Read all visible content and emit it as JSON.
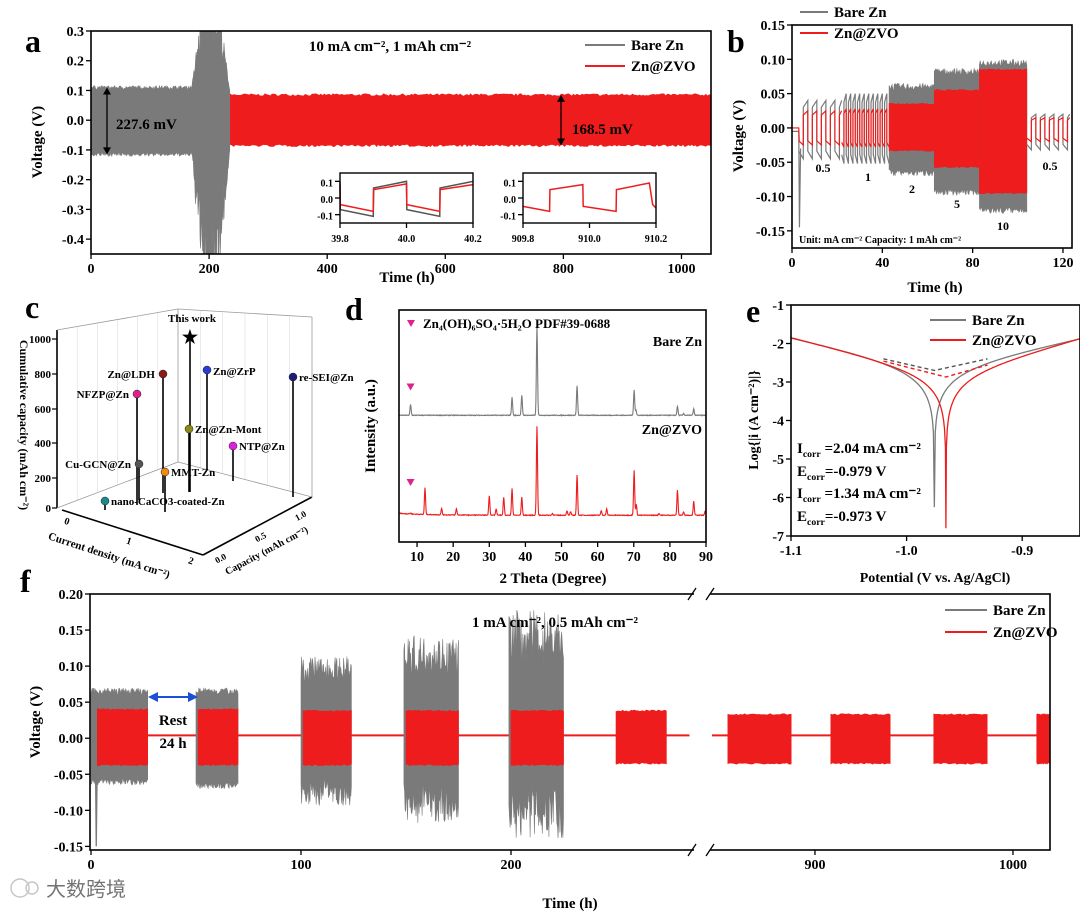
{
  "watermark": "大数跨境",
  "colors": {
    "bare": "#7a7a7a",
    "zvo": "#ee1c1c",
    "pink": "#e0218a"
  },
  "chart_data": [
    {
      "panel": "a",
      "type": "line",
      "title": "10 mA cm⁻², 1 mAh cm⁻²",
      "xlabel": "Time (h)",
      "ylabel": "Voltage (V)",
      "xlim": [
        0,
        1050
      ],
      "ylim": [
        -0.45,
        0.3
      ],
      "xticks": [
        "0",
        "200",
        "400",
        "600",
        "800",
        "1000"
      ],
      "yticks": [
        "0.3",
        "0.2",
        "0.1",
        "0.0",
        "-0.1",
        "-0.2",
        "-0.3",
        "-0.4"
      ],
      "legend": [
        "Bare Zn",
        "Zn@ZVO"
      ],
      "legend_position": "top-right",
      "series": [
        {
          "name": "Bare Zn",
          "segments": [
            {
              "t": [
                0,
                170
              ],
              "upper": 0.11,
              "lower": -0.115
            },
            {
              "t": [
                170,
                235
              ],
              "upper": 0.3,
              "lower": -0.45,
              "note": "short circuit"
            }
          ]
        },
        {
          "name": "Zn@ZVO",
          "segments": [
            {
              "t": [
                0,
                1050
              ],
              "upper": 0.085,
              "lower": -0.085
            }
          ]
        }
      ],
      "annotations": [
        "227.6 mV",
        "168.5 mV"
      ],
      "insets": [
        {
          "xlim": [
            39.8,
            40.2
          ],
          "ylim": [
            -0.15,
            0.15
          ],
          "xticks": [
            "39.8",
            "40.0",
            "40.2"
          ],
          "yticks": [
            "0.1",
            "0.0",
            "-0.1"
          ],
          "series": [
            {
              "name": "Bare Zn",
              "points": [
                [
                  39.8,
                  0.1
                ],
                [
                  39.801,
                  -0.07
                ],
                [
                  39.9,
                  -0.11
                ],
                [
                  39.901,
                  0.06
                ],
                [
                  40.0,
                  0.1
                ],
                [
                  40.001,
                  -0.07
                ],
                [
                  40.1,
                  -0.11
                ],
                [
                  40.101,
                  0.06
                ],
                [
                  40.2,
                  0.1
                ]
              ]
            },
            {
              "name": "Zn@ZVO",
              "points": [
                [
                  39.8,
                  0.08
                ],
                [
                  39.801,
                  -0.04
                ],
                [
                  39.9,
                  -0.08
                ],
                [
                  39.901,
                  0.05
                ],
                [
                  40.0,
                  0.085
                ],
                [
                  40.001,
                  -0.04
                ],
                [
                  40.1,
                  -0.08
                ],
                [
                  40.101,
                  0.05
                ],
                [
                  40.2,
                  0.08
                ]
              ]
            }
          ]
        },
        {
          "xlim": [
            909.8,
            910.2
          ],
          "ylim": [
            -0.15,
            0.15
          ],
          "xticks": [
            "909.8",
            "910.0",
            "910.2"
          ],
          "yticks": [
            "0.1",
            "0.0",
            "-0.1"
          ],
          "series": [
            {
              "name": "Zn@ZVO",
              "points": [
                [
                  909.8,
                  -0.05
                ],
                [
                  909.88,
                  -0.08
                ],
                [
                  909.881,
                  0.05
                ],
                [
                  909.98,
                  0.08
                ],
                [
                  909.981,
                  -0.05
                ],
                [
                  910.08,
                  -0.08
                ],
                [
                  910.081,
                  0.05
                ],
                [
                  910.18,
                  0.09
                ],
                [
                  910.19,
                  -0.04
                ],
                [
                  910.2,
                  -0.06
                ]
              ]
            }
          ]
        }
      ]
    },
    {
      "panel": "b",
      "type": "line",
      "xlabel": "Time (h)",
      "ylabel": "Voltage (V)",
      "xlim": [
        0,
        124
      ],
      "ylim": [
        -0.175,
        0.15
      ],
      "xticks": [
        "0",
        "40",
        "80",
        "120"
      ],
      "yticks": [
        "0.15",
        "0.10",
        "0.05",
        "0.00",
        "-0.05",
        "-0.10",
        "-0.15"
      ],
      "legend": [
        "Bare Zn",
        "Zn@ZVO"
      ],
      "legend_position": "top-left",
      "note": "Unit: mA cm⁻² Capacity: 1 mAh cm⁻²",
      "segments": [
        {
          "current_density": "0.5",
          "t": [
            3,
            22
          ],
          "period": 4,
          "bare": [
            0.04,
            -0.045
          ],
          "zvo": [
            0.025,
            -0.025
          ]
        },
        {
          "current_density": "1",
          "t": [
            22,
            43
          ],
          "period": 2,
          "bare": [
            0.05,
            -0.052
          ],
          "zvo": [
            0.028,
            -0.028
          ]
        },
        {
          "current_density": "2",
          "t": [
            43,
            63
          ],
          "period": 1,
          "bare": [
            0.06,
            -0.065
          ],
          "zvo": [
            0.035,
            -0.033
          ]
        },
        {
          "current_density": "5",
          "t": [
            63,
            83
          ],
          "period": 0.4,
          "bare": [
            0.082,
            -0.093
          ],
          "zvo": [
            0.055,
            -0.057
          ]
        },
        {
          "current_density": "10",
          "t": [
            83,
            104
          ],
          "period": 0.2,
          "bare": [
            0.095,
            -0.12
          ],
          "zvo": [
            0.085,
            -0.095
          ]
        },
        {
          "current_density": "0.5",
          "t": [
            104,
            123
          ],
          "period": 4,
          "bare": [
            0.02,
            -0.032
          ],
          "zvo": [
            0.015,
            -0.02
          ]
        }
      ],
      "bare_initial_spike": -0.145
    },
    {
      "panel": "c",
      "type": "scatter",
      "zlabel": "Cumulative capacity (mAh cm⁻²)",
      "xlabel": "Current density (mA cm⁻²)",
      "ylabel": "Capacity (mAh cm⁻²)",
      "zticks": [
        "0",
        "200",
        "400",
        "600",
        "800",
        "1000"
      ],
      "xticks": [
        "0",
        "1",
        "2"
      ],
      "yticks": [
        "0.0",
        "0.5",
        "1.0"
      ],
      "points": [
        {
          "name": "This work",
          "cumulative_capacity": 1000,
          "color": "#e8242b",
          "marker": "star"
        },
        {
          "name": "Zn@LDH",
          "cumulative_capacity": 800,
          "color": "#8b1a1a"
        },
        {
          "name": "Zn@ZrP",
          "cumulative_capacity": 800,
          "color": "#2a3bd6"
        },
        {
          "name": "re-SEI@Zn",
          "cumulative_capacity": 800,
          "color": "#1b1f7a"
        },
        {
          "name": "NFZP@Zn",
          "cumulative_capacity": 680,
          "color": "#e0218a"
        },
        {
          "name": "Zn@Zn-Mont",
          "cumulative_capacity": 450,
          "color": "#8a8a1a"
        },
        {
          "name": "NTP@Zn",
          "cumulative_capacity": 370,
          "color": "#e020e0"
        },
        {
          "name": "Cu-GCN@Zn",
          "cumulative_capacity": 260,
          "color": "#555555"
        },
        {
          "name": "MMT-Zn",
          "cumulative_capacity": 200,
          "color": "#f08a10"
        },
        {
          "name": "nano-CaCO3-coated-Zn",
          "cumulative_capacity": 30,
          "color": "#1a8a8a"
        }
      ]
    },
    {
      "panel": "d",
      "type": "line",
      "xlabel": "2 Theta (Degree)",
      "ylabel": "Intensity (a.u.)",
      "xlim": [
        5,
        90
      ],
      "ylim": [
        -0.3,
        2.3
      ],
      "xticks": [
        "10",
        "20",
        "30",
        "40",
        "50",
        "60",
        "70",
        "80",
        "90"
      ],
      "reference": "Zn₄(OH)₆SO₄·5H₂O PDF#39-0688",
      "series": [
        {
          "name": "Bare Zn",
          "offset": 1.12,
          "peaks": [
            [
              8.2,
              0.12
            ],
            [
              36.3,
              0.2
            ],
            [
              39.0,
              0.22
            ],
            [
              43.2,
              1.0
            ],
            [
              54.3,
              0.33
            ],
            [
              70.1,
              0.28
            ],
            [
              70.6,
              0.06
            ],
            [
              82.1,
              0.1
            ],
            [
              83.8,
              0.02
            ],
            [
              86.6,
              0.07
            ]
          ],
          "marked_peak": 8.2
        },
        {
          "name": "Zn@ZVO",
          "offset": 0,
          "peaks": [
            [
              8.2,
              0.01
            ],
            [
              12.2,
              0.3
            ],
            [
              16.8,
              0.07
            ],
            [
              20.9,
              0.07
            ],
            [
              30.0,
              0.22
            ],
            [
              31.9,
              0.07
            ],
            [
              34.0,
              0.2
            ],
            [
              36.3,
              0.3
            ],
            [
              39.0,
              0.2
            ],
            [
              43.2,
              1.0
            ],
            [
              47.5,
              0.02
            ],
            [
              51.5,
              0.05
            ],
            [
              52.5,
              0.04
            ],
            [
              54.3,
              0.45
            ],
            [
              61.0,
              0.05
            ],
            [
              62.5,
              0.07
            ],
            [
              70.1,
              0.5
            ],
            [
              70.7,
              0.12
            ],
            [
              77.0,
              0.02
            ],
            [
              82.1,
              0.28
            ],
            [
              83.8,
              0.04
            ],
            [
              86.6,
              0.16
            ],
            [
              89.8,
              0.05
            ]
          ],
          "marked_peak": 8.2
        }
      ]
    },
    {
      "panel": "e",
      "type": "line",
      "xlabel": "Potential (V vs. Ag/AgCl)",
      "ylabel": "Log{|i (A cm⁻²)|}",
      "xlim": [
        -1.1,
        -0.85
      ],
      "ylim": [
        -7,
        -1
      ],
      "xticks": [
        "-1.1",
        "-1.0",
        "-0.9"
      ],
      "yticks": [
        "-1",
        "-2",
        "-3",
        "-4",
        "-5",
        "-6",
        "-7"
      ],
      "legend": [
        "Bare Zn",
        "Zn@ZVO"
      ],
      "legend_position": "top-right",
      "series": [
        {
          "name": "Bare Zn",
          "dip_potential": -0.976,
          "log_i0": -2.7,
          "anodic_slope": 0.152,
          "cathodic_slope": 0.146,
          "min_log_i": -6.25,
          "i_corr": {
            "sym": "I",
            "sub": "corr",
            "val": " =2.04 mA cm⁻²"
          },
          "e_corr": {
            "sym": "E",
            "sub": "corr",
            "val": "=-0.979 V"
          }
        },
        {
          "name": "Zn@ZVO",
          "dip_potential": -0.966,
          "log_i0": -2.87,
          "anodic_slope": 0.116,
          "cathodic_slope": 0.131,
          "min_log_i": -6.8,
          "i_corr": {
            "sym": "I",
            "sub": "corr",
            "val": " =1.34 mA cm⁻²"
          },
          "e_corr": {
            "sym": "E",
            "sub": "corr",
            "val": "=-0.973 V"
          }
        }
      ]
    },
    {
      "panel": "f",
      "type": "line",
      "title": "1 mA cm⁻², 0.5 mAh cm⁻²",
      "xlabel": "Time (h)",
      "ylabel": "Voltage (V)",
      "xlim_segments": [
        [
          0,
          285
        ],
        [
          848,
          1020
        ]
      ],
      "ylim": [
        -0.155,
        0.2
      ],
      "xticks": [
        [
          "0",
          "100",
          "200"
        ],
        [
          "900",
          "1000"
        ]
      ],
      "yticks": [
        "0.20",
        "0.15",
        "0.10",
        "0.05",
        "0.00",
        "-0.05",
        "-0.10",
        "-0.15"
      ],
      "legend": [
        "Bare Zn",
        "Zn@ZVO"
      ],
      "legend_position": "top-right",
      "rest_label": [
        "Rest",
        "24 h"
      ],
      "blocks": [
        {
          "t": [
            3,
            27
          ],
          "bare": [
            0.065,
            -0.06
          ],
          "zvo": [
            0.04,
            -0.037
          ]
        },
        {
          "t": [
            51,
            70
          ],
          "bare": [
            0.065,
            -0.065
          ],
          "zvo": [
            0.04,
            -0.037
          ]
        },
        {
          "t": [
            101,
            124
          ],
          "bare": [
            0.095,
            -0.075
          ],
          "zvo": [
            0.038,
            -0.037
          ]
        },
        {
          "t": [
            150,
            175
          ],
          "bare": [
            0.115,
            -0.09
          ],
          "zvo": [
            0.038,
            -0.037
          ]
        },
        {
          "t": [
            200,
            225
          ],
          "bare": [
            0.14,
            -0.1
          ],
          "zvo": [
            0.038,
            -0.037
          ]
        },
        {
          "t": [
            250,
            274
          ],
          "bare": null,
          "zvo": [
            0.038,
            -0.035
          ]
        },
        {
          "t": [
            856,
            888
          ],
          "bare": null,
          "zvo": [
            0.033,
            -0.035
          ]
        },
        {
          "t": [
            908,
            938
          ],
          "bare": null,
          "zvo": [
            0.033,
            -0.035
          ]
        },
        {
          "t": [
            960,
            987
          ],
          "bare": null,
          "zvo": [
            0.033,
            -0.035
          ]
        },
        {
          "t": [
            1012,
            1020
          ],
          "bare": null,
          "zvo": [
            0.033,
            -0.035
          ]
        }
      ],
      "bare_initial_spike": -0.15
    }
  ],
  "panel_labels": [
    "a",
    "b",
    "c",
    "d",
    "e",
    "f"
  ]
}
